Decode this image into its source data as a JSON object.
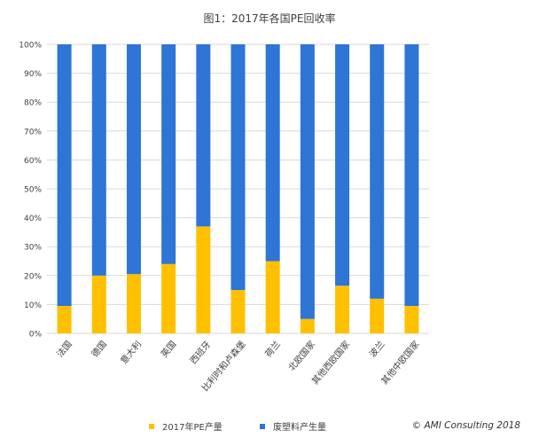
{
  "chart_data": {
    "type": "bar",
    "stacked": true,
    "percent": true,
    "title": "图1：2017年各国PE回收率",
    "categories": [
      "法国",
      "德国",
      "意大利",
      "英国",
      "西班牙",
      "比利时和卢森堡",
      "荷兰",
      "北欧国家",
      "其他西欧国家",
      "波兰",
      "其他中欧国家"
    ],
    "series": [
      {
        "name": "2017年PE产量",
        "color": "#ffc000",
        "values": [
          9.5,
          20,
          20.5,
          24,
          37,
          15,
          25,
          5,
          16.5,
          12,
          9.5
        ]
      },
      {
        "name": "废塑料产生量",
        "color": "#2e75d5",
        "values": [
          90.5,
          80,
          79.5,
          76,
          63,
          85,
          75,
          95,
          83.5,
          88,
          90.5
        ]
      }
    ],
    "ylim": [
      0,
      100
    ],
    "yticks": [
      "0%",
      "10%",
      "20%",
      "30%",
      "40%",
      "50%",
      "60%",
      "70%",
      "80%",
      "90%",
      "100%"
    ],
    "grid": true,
    "legend_position": "bottom"
  },
  "footer": {
    "copyright": "© AMI Consulting 2018"
  }
}
